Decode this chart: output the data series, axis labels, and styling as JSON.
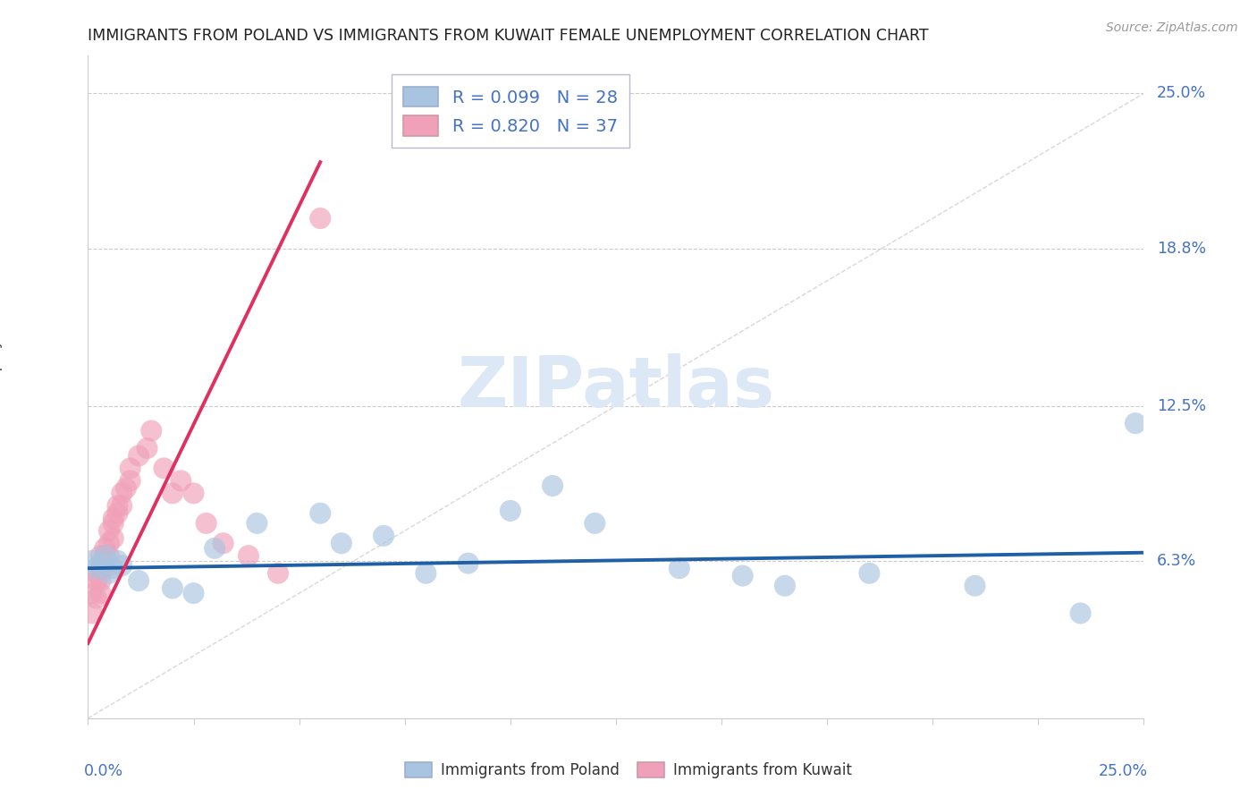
{
  "title": "IMMIGRANTS FROM POLAND VS IMMIGRANTS FROM KUWAIT FEMALE UNEMPLOYMENT CORRELATION CHART",
  "source": "Source: ZipAtlas.com",
  "ylabel": "Female Unemployment",
  "y_ticks": [
    0.0,
    0.063,
    0.125,
    0.188,
    0.25
  ],
  "y_tick_labels": [
    "",
    "6.3%",
    "12.5%",
    "18.8%",
    "25.0%"
  ],
  "x_range": [
    0.0,
    0.25
  ],
  "y_range": [
    0.0,
    0.265
  ],
  "poland_R": 0.099,
  "poland_N": 28,
  "kuwait_R": 0.82,
  "kuwait_N": 37,
  "poland_color": "#a8c4e0",
  "kuwait_color": "#f0a0b8",
  "poland_line_color": "#1f5fa6",
  "kuwait_line_color": "#e03060",
  "diag_color": "#c8c8c8",
  "watermark_color": "#dce8f5",
  "poland_x": [
    0.001,
    0.002,
    0.003,
    0.004,
    0.005,
    0.006,
    0.007,
    0.008,
    0.012,
    0.02,
    0.025,
    0.03,
    0.04,
    0.055,
    0.06,
    0.07,
    0.08,
    0.09,
    0.1,
    0.11,
    0.12,
    0.14,
    0.155,
    0.165,
    0.185,
    0.21,
    0.235,
    0.248
  ],
  "poland_y": [
    0.063,
    0.06,
    0.062,
    0.065,
    0.058,
    0.06,
    0.063,
    0.061,
    0.055,
    0.052,
    0.05,
    0.068,
    0.078,
    0.082,
    0.07,
    0.073,
    0.058,
    0.062,
    0.083,
    0.093,
    0.078,
    0.06,
    0.057,
    0.053,
    0.058,
    0.053,
    0.042,
    0.118
  ],
  "kuwait_x": [
    0.001,
    0.001,
    0.002,
    0.002,
    0.002,
    0.003,
    0.003,
    0.003,
    0.003,
    0.004,
    0.004,
    0.004,
    0.005,
    0.005,
    0.005,
    0.006,
    0.006,
    0.006,
    0.007,
    0.007,
    0.008,
    0.008,
    0.009,
    0.01,
    0.01,
    0.012,
    0.014,
    0.015,
    0.018,
    0.02,
    0.022,
    0.025,
    0.028,
    0.032,
    0.038,
    0.045,
    0.055
  ],
  "kuwait_y": [
    0.05,
    0.042,
    0.055,
    0.048,
    0.058,
    0.05,
    0.055,
    0.06,
    0.065,
    0.06,
    0.065,
    0.068,
    0.065,
    0.07,
    0.075,
    0.072,
    0.078,
    0.08,
    0.082,
    0.085,
    0.085,
    0.09,
    0.092,
    0.095,
    0.1,
    0.105,
    0.108,
    0.115,
    0.1,
    0.09,
    0.095,
    0.09,
    0.078,
    0.07,
    0.065,
    0.058,
    0.2
  ]
}
